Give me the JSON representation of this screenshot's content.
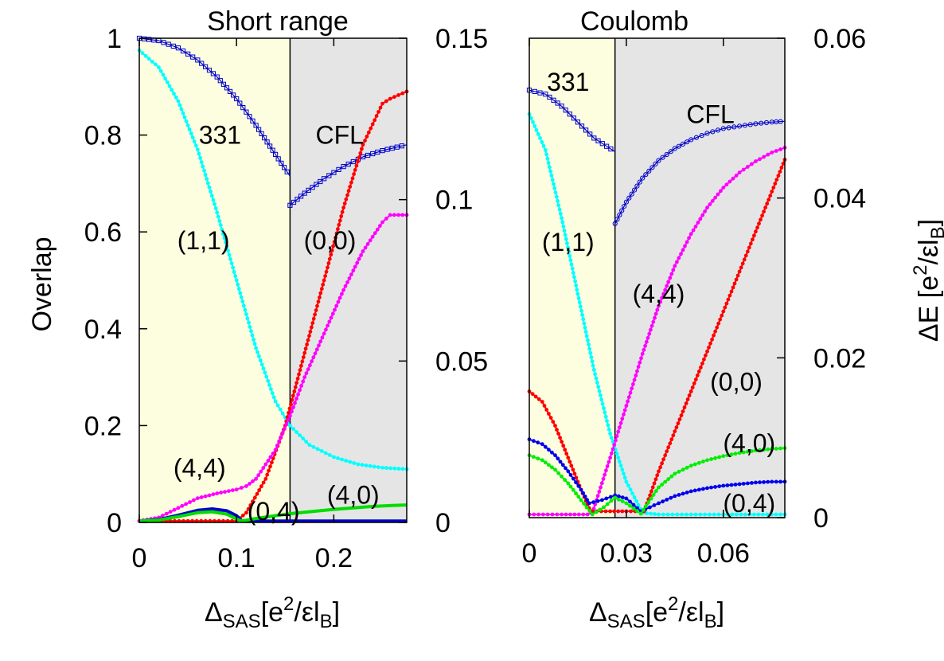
{
  "chart_data": [
    {
      "type": "line",
      "title": "Short range",
      "xlabel": "Δ_SAS[e²/εl_B]",
      "ylabel_left": "Overlap",
      "xlim": [
        0,
        0.275
      ],
      "ylim_left": [
        0,
        1
      ],
      "ylim_right": [
        0,
        0.15
      ],
      "x_ticks": [
        0,
        0.1,
        0.2
      ],
      "x_tick_labels": [
        "0",
        "0.1",
        "0.2"
      ],
      "y_left_ticks": [
        0,
        0.2,
        0.4,
        0.6,
        0.8,
        1
      ],
      "y_left_tick_labels": [
        "0",
        "0.2",
        "0.4",
        "0.6",
        "0.8",
        "1"
      ],
      "y_right_ticks": [
        0,
        0.05,
        0.1,
        0.15
      ],
      "y_right_tick_labels": [
        "0",
        "0.05",
        "0.1",
        "0.15"
      ],
      "region_boundary_x": 0.155,
      "regions": [
        {
          "x0": 0,
          "x1": 0.155,
          "color": "#fdfde0"
        },
        {
          "x0": 0.155,
          "x1": 0.275,
          "color": "#e5e5e5"
        }
      ],
      "annotations": [
        {
          "text": "331",
          "x": 0.083,
          "y": 0.8
        },
        {
          "text": "CFL",
          "x": 0.206,
          "y": 0.8
        },
        {
          "text": "(1,1)",
          "x": 0.066,
          "y": 0.582
        },
        {
          "text": "(0,0)",
          "x": 0.196,
          "y": 0.582
        },
        {
          "text": "(4,4)",
          "x": 0.062,
          "y": 0.113
        },
        {
          "text": "(0,4)",
          "x": 0.138,
          "y": 0.023
        },
        {
          "text": "(4,0)",
          "x": 0.22,
          "y": 0.057
        }
      ],
      "series": [
        {
          "axis": "left",
          "color": "#0000cc",
          "marker": "square",
          "segments": [
            {
              "x": [
                0,
                0.02,
                0.04,
                0.06,
                0.08,
                0.1,
                0.12,
                0.14,
                0.155
              ],
              "y": [
                1.0,
                0.995,
                0.98,
                0.955,
                0.92,
                0.875,
                0.82,
                0.76,
                0.715
              ]
            },
            {
              "x": [
                0.155,
                0.17,
                0.19,
                0.21,
                0.23,
                0.25,
                0.275
              ],
              "y": [
                0.655,
                0.68,
                0.71,
                0.735,
                0.755,
                0.768,
                0.78
              ]
            }
          ]
        },
        {
          "axis": "left",
          "color": "#00ffff",
          "marker": "dot",
          "segments": [
            {
              "x": [
                0,
                0.02,
                0.04,
                0.06,
                0.08,
                0.1,
                0.12,
                0.14,
                0.155,
                0.175,
                0.2,
                0.225,
                0.25,
                0.275
              ],
              "y": [
                0.975,
                0.94,
                0.87,
                0.77,
                0.64,
                0.5,
                0.36,
                0.25,
                0.2,
                0.16,
                0.135,
                0.12,
                0.113,
                0.11
              ]
            }
          ]
        },
        {
          "axis": "left",
          "color": "#ff0000",
          "marker": "dot",
          "segments": [
            {
              "x": [
                0,
                0.1,
                0.11,
                0.13,
                0.15,
                0.17,
                0.19,
                0.21,
                0.23,
                0.25,
                0.258,
                0.275
              ],
              "y": [
                0.003,
                0.003,
                0.02,
                0.09,
                0.2,
                0.35,
                0.5,
                0.65,
                0.78,
                0.865,
                0.875,
                0.89
              ]
            }
          ]
        },
        {
          "axis": "left",
          "color": "#ff00ff",
          "marker": "dot",
          "segments": [
            {
              "x": [
                0,
                0.02,
                0.04,
                0.06,
                0.08,
                0.1,
                0.11,
                0.12,
                0.14,
                0.155,
                0.17,
                0.19,
                0.21,
                0.23,
                0.25,
                0.258,
                0.275
              ],
              "y": [
                0.003,
                0.01,
                0.03,
                0.05,
                0.06,
                0.068,
                0.075,
                0.09,
                0.15,
                0.22,
                0.3,
                0.39,
                0.48,
                0.56,
                0.62,
                0.635,
                0.635
              ]
            }
          ]
        },
        {
          "axis": "left",
          "color": "#0000cc",
          "marker": "line",
          "segments": [
            {
              "x": [
                0,
                0.02,
                0.04,
                0.06,
                0.075,
                0.09,
                0.1,
                0.105,
                0.12,
                0.155,
                0.2,
                0.275
              ],
              "y": [
                0.003,
                0.006,
                0.015,
                0.025,
                0.028,
                0.024,
                0.014,
                0.004,
                0.003,
                0.003,
                0.003,
                0.003
              ]
            }
          ]
        },
        {
          "axis": "left",
          "color": "#00dd00",
          "marker": "line",
          "segments": [
            {
              "x": [
                0,
                0.02,
                0.04,
                0.06,
                0.075,
                0.09,
                0.1,
                0.105,
                0.12,
                0.14,
                0.16,
                0.18,
                0.2,
                0.22,
                0.24,
                0.26,
                0.275
              ],
              "y": [
                0.003,
                0.005,
                0.012,
                0.02,
                0.022,
                0.017,
                0.007,
                0.003,
                0.008,
                0.014,
                0.019,
                0.023,
                0.027,
                0.03,
                0.033,
                0.035,
                0.036
              ]
            }
          ]
        }
      ]
    },
    {
      "type": "line",
      "title": "Coulomb",
      "xlabel": "Δ_SAS[e²/εl_B]",
      "ylabel_right": "ΔE [e²/εl_B]",
      "xlim": [
        0,
        0.079
      ],
      "ylim_right": [
        0,
        0.06
      ],
      "x_ticks": [
        0,
        0.03,
        0.06
      ],
      "x_tick_labels": [
        "0",
        "0.03",
        "0.06"
      ],
      "y_right_ticks": [
        0,
        0.02,
        0.04,
        0.06
      ],
      "y_right_tick_labels": [
        "0",
        "0.02",
        "0.04",
        "0.06"
      ],
      "region_boundary_x": 0.0265,
      "regions": [
        {
          "x0": 0,
          "x1": 0.0265,
          "color": "#fdfde0"
        },
        {
          "x0": 0.0265,
          "x1": 0.079,
          "color": "#e5e5e5"
        }
      ],
      "annotations": [
        {
          "text": "331",
          "x": 0.012,
          "y": 0.0545
        },
        {
          "text": "CFL",
          "x": 0.056,
          "y": 0.0505
        },
        {
          "text": "(1,1)",
          "x": 0.012,
          "y": 0.0345
        },
        {
          "text": "(4,4)",
          "x": 0.04,
          "y": 0.028
        },
        {
          "text": "(0,0)",
          "x": 0.064,
          "y": 0.017
        },
        {
          "text": "(4,0)",
          "x": 0.068,
          "y": 0.0093
        },
        {
          "text": "(0,4)",
          "x": 0.068,
          "y": 0.0018
        }
      ],
      "series": [
        {
          "axis": "right",
          "color": "#0000cc",
          "marker": "square",
          "segments": [
            {
              "x": [
                0,
                0.005,
                0.01,
                0.015,
                0.02,
                0.0265
              ],
              "y": [
                0.0535,
                0.053,
                0.0515,
                0.0495,
                0.0475,
                0.0458
              ]
            }
          ]
        },
        {
          "axis": "right",
          "color": "#0000cc",
          "marker": "circle",
          "segments": [
            {
              "x": [
                0.0265,
                0.03,
                0.035,
                0.04,
                0.045,
                0.05,
                0.055,
                0.06,
                0.065,
                0.07,
                0.075,
                0.079
              ],
              "y": [
                0.0368,
                0.0395,
                0.0425,
                0.0447,
                0.0462,
                0.0473,
                0.0481,
                0.0487,
                0.049,
                0.0493,
                0.0495,
                0.0496
              ]
            }
          ]
        },
        {
          "axis": "right",
          "color": "#00ffff",
          "marker": "dot",
          "segments": [
            {
              "x": [
                0,
                0.005,
                0.01,
                0.015,
                0.02,
                0.025,
                0.03,
                0.035,
                0.04,
                0.05,
                0.06,
                0.079
              ],
              "y": [
                0.0505,
                0.046,
                0.0375,
                0.028,
                0.0185,
                0.0105,
                0.0045,
                0.0006,
                0.0004,
                0.0004,
                0.0004,
                0.0004
              ]
            }
          ]
        },
        {
          "axis": "right",
          "color": "#ff00ff",
          "marker": "dot",
          "segments": [
            {
              "x": [
                0,
                0.01,
                0.018,
                0.0195,
                0.025,
                0.03,
                0.035,
                0.04,
                0.045,
                0.05,
                0.055,
                0.06,
                0.065,
                0.07,
                0.075,
                0.079
              ],
              "y": [
                0.0004,
                0.0004,
                0.0004,
                0.0006,
                0.0075,
                0.014,
                0.0205,
                0.0265,
                0.0315,
                0.0355,
                0.0388,
                0.0413,
                0.0432,
                0.0446,
                0.0457,
                0.0463
              ]
            }
          ]
        },
        {
          "axis": "right",
          "color": "#ff0000",
          "marker": "dot",
          "segments": [
            {
              "x": [
                0,
                0.004,
                0.008,
                0.012,
                0.016,
                0.0185,
                0.0195,
                0.025,
                0.03,
                0.0355,
                0.04,
                0.045,
                0.05,
                0.055,
                0.06,
                0.065,
                0.07,
                0.075,
                0.079
              ],
              "y": [
                0.0158,
                0.0145,
                0.0115,
                0.0075,
                0.0035,
                0.0012,
                0.0008,
                0.0008,
                0.0008,
                0.0008,
                0.0058,
                0.0108,
                0.0158,
                0.0208,
                0.0258,
                0.0308,
                0.0358,
                0.0408,
                0.0448
              ]
            }
          ]
        },
        {
          "axis": "right",
          "color": "#0000ee",
          "marker": "dot",
          "segments": [
            {
              "x": [
                0,
                0.004,
                0.008,
                0.012,
                0.016,
                0.0185,
                0.0225,
                0.0265,
                0.03,
                0.0345,
                0.04,
                0.045,
                0.05,
                0.055,
                0.06,
                0.065,
                0.07,
                0.075,
                0.079
              ],
              "y": [
                0.0098,
                0.0092,
                0.0078,
                0.0058,
                0.0035,
                0.0018,
                0.0022,
                0.0028,
                0.0024,
                0.0008,
                0.0018,
                0.0027,
                0.0033,
                0.0037,
                0.004,
                0.0042,
                0.0044,
                0.0045,
                0.0045
              ]
            }
          ]
        },
        {
          "axis": "right",
          "color": "#00ee00",
          "marker": "dot",
          "segments": [
            {
              "x": [
                0,
                0.004,
                0.008,
                0.012,
                0.016,
                0.0195,
                0.023,
                0.0265,
                0.03,
                0.0345,
                0.04,
                0.045,
                0.05,
                0.055,
                0.06,
                0.065,
                0.07,
                0.075,
                0.079
              ],
              "y": [
                0.0078,
                0.0072,
                0.006,
                0.0043,
                0.0022,
                0.0004,
                0.0013,
                0.0025,
                0.0018,
                0.0005,
                0.0038,
                0.0055,
                0.0065,
                0.0072,
                0.0077,
                0.0081,
                0.0084,
                0.0086,
                0.0087
              ]
            }
          ]
        }
      ]
    }
  ]
}
